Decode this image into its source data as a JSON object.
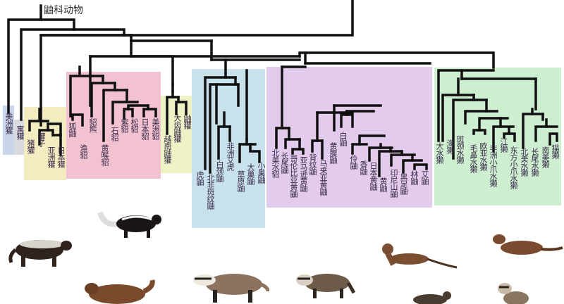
{
  "title": "鼬科动物",
  "colors": {
    "blue_box": "#c9d6ea",
    "grey_box": "#d8dae0",
    "yellow_box": "#f3ecc0",
    "pink_box": "#f2c2d0",
    "lightyellow_box": "#eef2c4",
    "lightblue_box": "#c8e2ec",
    "purple_box": "#e2cbec",
    "green_box": "#cdeecf",
    "line": "#111111"
  },
  "groups": {
    "americanbadger": [
      "美洲獾"
    ],
    "stinkbadger": [
      "寓獾"
    ],
    "badgers": [
      "猪獾",
      "獾子",
      "亚洲獾",
      "日本獾"
    ],
    "martens": [
      "狐鼬",
      "渔貂",
      "貂熊",
      "黄喉貂",
      "石貂",
      "紫貂",
      "松貂",
      "日本貂",
      "美洲貂"
    ],
    "ferretbadgers": [
      "越南鼬獾",
      "大齿鼬獾",
      "鼬獾"
    ],
    "zorilla": [
      "虎鼬",
      "北非斑纹鼬",
      "白颈鼬",
      "非洲艾虎",
      "草原鼬",
      "大巢鼬",
      "小巢鼬"
    ],
    "weasels": [
      "北美水貂",
      "长尾鼬",
      "哥伦比亚黄鼬",
      "亚马逊黄鼬",
      "背纹鼬",
      "马来亚黄鼬",
      "黄腹鼬",
      "白鼬",
      "伶鼬",
      "香鼬",
      "日本黄鼬",
      "黄鼬",
      "印尼山鼬",
      "黑足鼬",
      "林鼬",
      "艾鼬"
    ],
    "otters": [
      "大水獭",
      "海獭",
      "斑颈水獭",
      "毛鼻水獭",
      "欧亚水獭",
      "非洲小爪水獭",
      "江獭",
      "东方小爪水獭",
      "北美水獭",
      "长尾水獭",
      "南美獭",
      "猫獭"
    ]
  },
  "animals": [
    "honey-badger",
    "skunk",
    "wolverine",
    "european-badger",
    "american-badger",
    "long-tailed-weasel",
    "mink",
    "ferret",
    "stoat"
  ]
}
